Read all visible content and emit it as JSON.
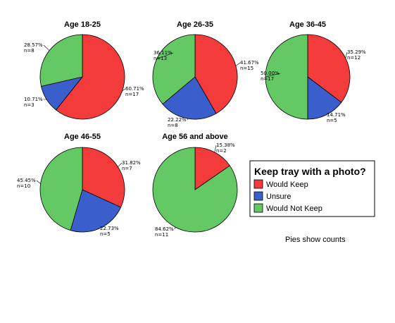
{
  "colors": {
    "would_keep": "#f43b3b",
    "unsure": "#3a5fcd",
    "would_not_keep": "#64c864"
  },
  "legend": {
    "title": "Keep tray with a photo?",
    "items": [
      {
        "key": "would_keep",
        "label": "Would Keep"
      },
      {
        "key": "unsure",
        "label": "Unsure"
      },
      {
        "key": "would_not_keep",
        "label": "Would Not Keep"
      }
    ]
  },
  "note": "Pies show counts",
  "chart_data": {
    "type": "pie",
    "categories": [
      "Would Keep",
      "Unsure",
      "Would Not Keep"
    ],
    "pies": [
      {
        "title": "Age 18-25",
        "slices": [
          {
            "category": "Would Keep",
            "count": 17,
            "percent": "60.71%",
            "n": "n=17"
          },
          {
            "category": "Unsure",
            "count": 3,
            "percent": "10.71%",
            "n": "n=3"
          },
          {
            "category": "Would Not Keep",
            "count": 8,
            "percent": "28.57%",
            "n": "n=8"
          }
        ]
      },
      {
        "title": "Age 26-35",
        "slices": [
          {
            "category": "Would Keep",
            "count": 15,
            "percent": "41.67%",
            "n": "n=15"
          },
          {
            "category": "Unsure",
            "count": 8,
            "percent": "22.22%",
            "n": "n=8"
          },
          {
            "category": "Would Not Keep",
            "count": 13,
            "percent": "36.11%",
            "n": "n=13"
          }
        ]
      },
      {
        "title": "Age 36-45",
        "slices": [
          {
            "category": "Would Keep",
            "count": 12,
            "percent": "35.29%",
            "n": "n=12"
          },
          {
            "category": "Unsure",
            "count": 5,
            "percent": "14.71%",
            "n": "n=5"
          },
          {
            "category": "Would Not Keep",
            "count": 17,
            "percent": "50.00%",
            "n": "n=17"
          }
        ]
      },
      {
        "title": "Age 46-55",
        "slices": [
          {
            "category": "Would Keep",
            "count": 7,
            "percent": "31.82%",
            "n": "n=7"
          },
          {
            "category": "Unsure",
            "count": 5,
            "percent": "22.73%",
            "n": "n=5"
          },
          {
            "category": "Would Not Keep",
            "count": 10,
            "percent": "45.45%",
            "n": "n=10"
          }
        ]
      },
      {
        "title": "Age 56 and above",
        "slices": [
          {
            "category": "Would Keep",
            "count": 2,
            "percent": "15.38%",
            "n": "n=2"
          },
          {
            "category": "Would Not Keep",
            "count": 11,
            "percent": "84.62%",
            "n": "n=11"
          }
        ]
      }
    ]
  }
}
